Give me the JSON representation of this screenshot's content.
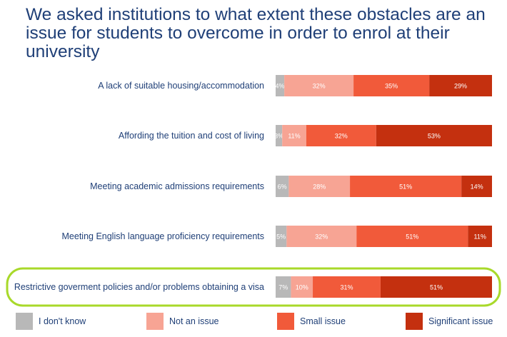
{
  "chart_data": {
    "type": "bar",
    "orientation": "horizontal",
    "stacked": true,
    "title": "We asked institutions to what extent these obstacles are an issue for students to overcome in order to enrol at their university",
    "categories": [
      "A lack of suitable housing/accommodation",
      "Affording the tuition and cost of living",
      "Meeting academic admissions requirements",
      "Meeting English language proficiency requirements",
      "Restrictive goverment policies and/or problems obtaining a visa"
    ],
    "series": [
      {
        "name": "I don't know",
        "color": "#b8b8b8",
        "values": [
          4,
          3,
          6,
          5,
          7
        ]
      },
      {
        "name": "Not an issue",
        "color": "#f7a494",
        "values": [
          32,
          11,
          28,
          32,
          10
        ]
      },
      {
        "name": "Small issue",
        "color": "#f15a3a",
        "values": [
          35,
          32,
          51,
          51,
          31
        ]
      },
      {
        "name": "Significant issue",
        "color": "#c4300f",
        "values": [
          29,
          53,
          14,
          11,
          51
        ]
      }
    ],
    "highlighted_category_index": 4,
    "highlight_color": "#a8d92a",
    "legend_position": "bottom",
    "value_suffix": "%"
  }
}
